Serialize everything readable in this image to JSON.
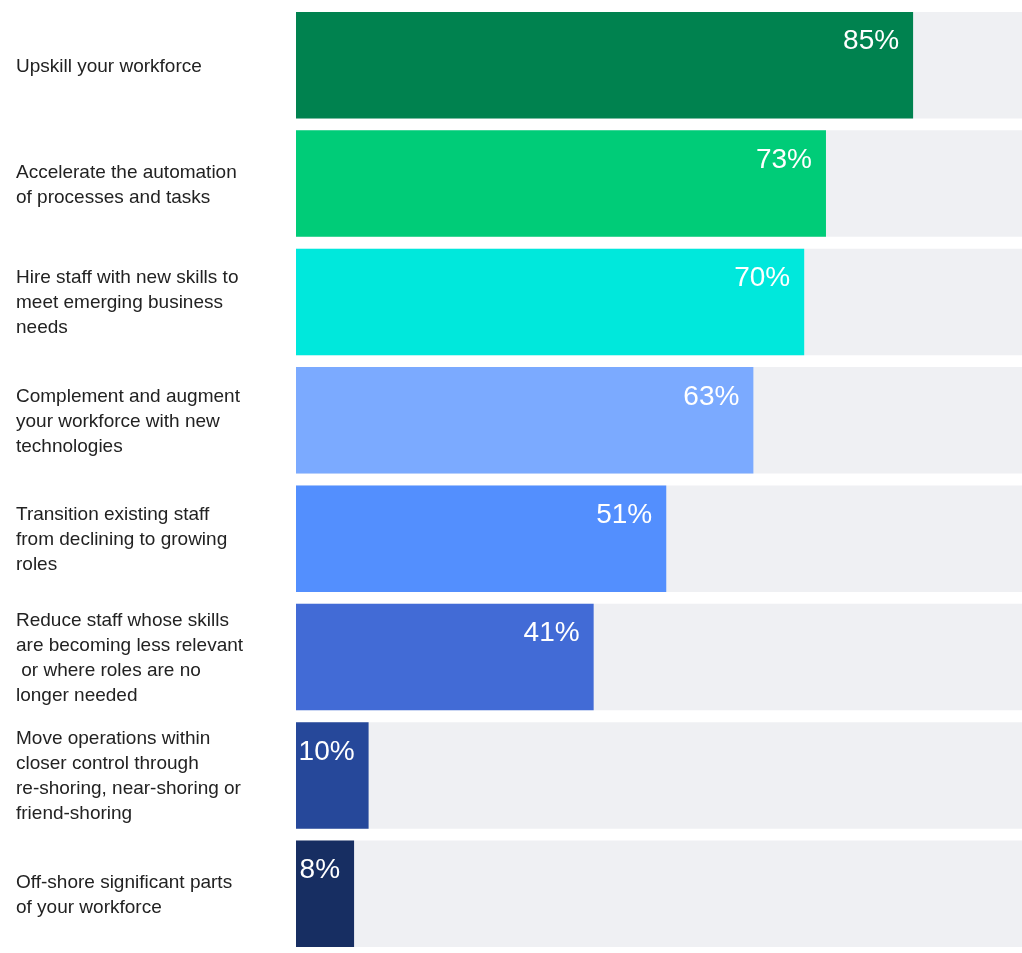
{
  "chart_data": {
    "type": "bar",
    "orientation": "horizontal",
    "categories": [
      "Upskill your workforce",
      "Accelerate the automation of processes and tasks",
      "Hire staff with new skills to meet emerging business needs",
      "Complement and augment your workforce with new technologies",
      "Transition existing staff from declining to growing roles",
      "Reduce staff whose skills are becoming less relevant or where roles are no longer needed",
      "Move operations within closer control through re-shoring, near-shoring or friend-shoring",
      "Off-shore significant parts of your workforce"
    ],
    "values": [
      85,
      73,
      70,
      63,
      51,
      41,
      10,
      8
    ],
    "value_labels": [
      "85%",
      "73%",
      "70%",
      "63%",
      "51%",
      "41%",
      "10%",
      "8%"
    ],
    "colors": [
      "#00824f",
      "#00cc78",
      "#00e8dc",
      "#7baaff",
      "#538ffe",
      "#426bd6",
      "#26489a",
      "#172e62"
    ],
    "xlim": [
      0,
      100
    ],
    "tick_labels": "y"
  }
}
